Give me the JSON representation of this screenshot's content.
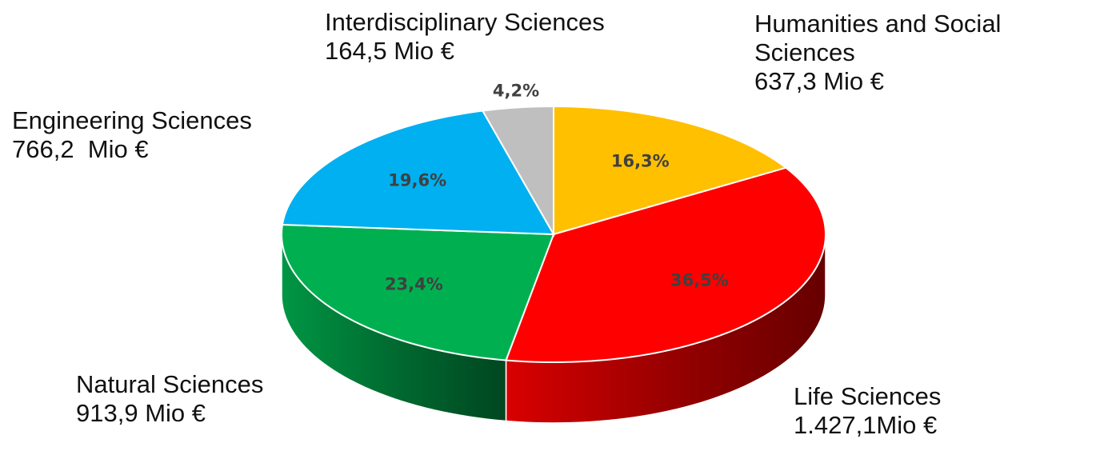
{
  "chart_data": {
    "type": "pie",
    "categories": [
      "Humanities and Social Sciences",
      "Life Sciences",
      "Natural Sciences",
      "Engineering Sciences",
      "Interdisciplinary Sciences"
    ],
    "category_amounts": [
      "637,3 Mio €",
      "1.427,1Mio €",
      "913,9 Mio €",
      "766,2  Mio €",
      "164,5 Mio €"
    ],
    "values": [
      16.3,
      36.5,
      23.4,
      19.6,
      4.2
    ],
    "value_labels": [
      "16,3%",
      "36,5%",
      "23,4%",
      "19,6%",
      "4,2%"
    ],
    "colors": [
      "#ffc000",
      "#ff0000",
      "#00b050",
      "#00b0f0",
      "#bfbfbf"
    ],
    "three_d": true
  }
}
